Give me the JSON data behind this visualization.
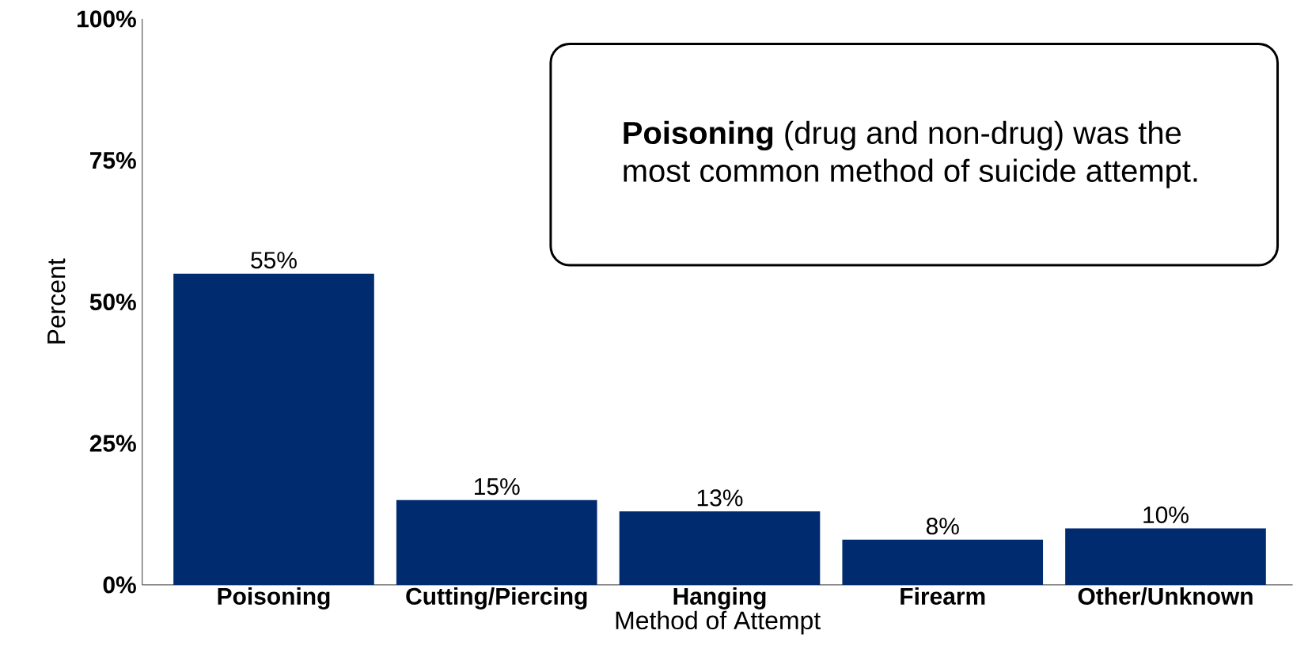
{
  "chart_data": {
    "type": "bar",
    "xlabel": "Method of Attempt",
    "ylabel": "Percent",
    "categories": [
      "Poisoning",
      "Cutting/Piercing",
      "Hanging",
      "Firearm",
      "Other/Unknown"
    ],
    "values": [
      55,
      15,
      13,
      8,
      10
    ],
    "value_labels": [
      "55%",
      "15%",
      "13%",
      "8%",
      "10%"
    ],
    "color": "#002b6f",
    "ylim": [
      0,
      100
    ],
    "yticks": [
      {
        "value": 0,
        "label": "0%"
      },
      {
        "value": 25,
        "label": "25%"
      },
      {
        "value": 50,
        "label": "50%"
      },
      {
        "value": 75,
        "label": "75%"
      },
      {
        "value": 100,
        "label": "100%"
      }
    ],
    "annotations": [
      "**Poisoning** (drug and non-drug) was the most common method of suicide attempt."
    ],
    "grid": false
  }
}
